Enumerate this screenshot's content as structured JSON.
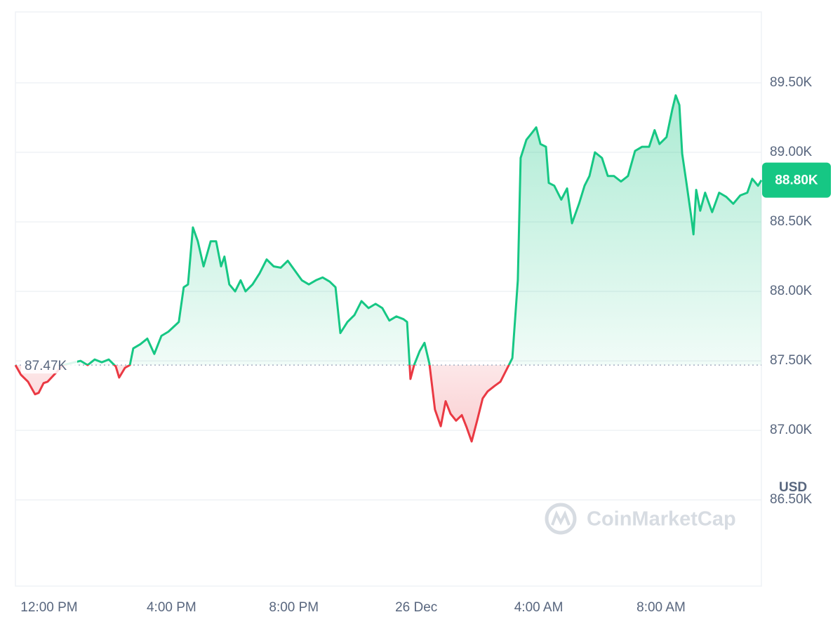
{
  "chart_data": {
    "type": "line",
    "unit": "USD",
    "watermark": "CoinMarketCap",
    "up_color": "#16c784",
    "down_color": "#ea3943",
    "grid": true,
    "xlim": [
      -1.1,
      23.28
    ],
    "xticks": [
      {
        "value": 0,
        "label": "12:00 PM"
      },
      {
        "value": 4,
        "label": "4:00 PM"
      },
      {
        "value": 8,
        "label": "8:00 PM"
      },
      {
        "value": 12,
        "label": "26 Dec"
      },
      {
        "value": 16,
        "label": "4:00 AM"
      },
      {
        "value": 20,
        "label": "8:00 AM"
      }
    ],
    "ylim": [
      85.88,
      90.01
    ],
    "yticks": [
      {
        "value": 86.5,
        "label": "86.50K"
      },
      {
        "value": 87,
        "label": "87.00K"
      },
      {
        "value": 87.5,
        "label": "87.50K"
      },
      {
        "value": 88,
        "label": "88.00K"
      },
      {
        "value": 88.5,
        "label": "88.50K"
      },
      {
        "value": 89,
        "label": "89.00K"
      },
      {
        "value": 89.5,
        "label": "89.50K"
      }
    ],
    "open": {
      "value": 87.47,
      "label": "87.47K"
    },
    "last_price": {
      "value": 88.8,
      "label": "88.80K"
    },
    "x": [
      -1.1,
      -0.92,
      -0.69,
      -0.46,
      -0.34,
      -0.18,
      -0.05,
      0.46,
      1.03,
      1.26,
      1.49,
      1.72,
      1.95,
      2.18,
      2.29,
      2.48,
      2.64,
      2.75,
      2.98,
      3.21,
      3.44,
      3.67,
      3.9,
      4.24,
      4.4,
      4.54,
      4.7,
      4.86,
      5.05,
      5.28,
      5.46,
      5.62,
      5.73,
      5.89,
      6.08,
      6.26,
      6.42,
      6.65,
      6.88,
      7.11,
      7.34,
      7.57,
      7.8,
      8.03,
      8.26,
      8.49,
      8.72,
      8.94,
      9.17,
      9.36,
      9.52,
      9.75,
      9.98,
      10.21,
      10.44,
      10.67,
      10.89,
      11.12,
      11.35,
      11.58,
      11.7,
      11.81,
      11.93,
      12.11,
      12.27,
      12.43,
      12.61,
      12.8,
      12.96,
      13.12,
      13.3,
      13.49,
      13.65,
      13.81,
      13.99,
      14.17,
      14.33,
      14.56,
      14.75,
      14.91,
      15.14,
      15.32,
      15.41,
      15.6,
      15.78,
      15.92,
      16.06,
      16.24,
      16.33,
      16.51,
      16.74,
      16.93,
      17.09,
      17.32,
      17.5,
      17.66,
      17.84,
      18.07,
      18.26,
      18.46,
      18.69,
      18.92,
      19.15,
      19.38,
      19.61,
      19.79,
      19.95,
      20.18,
      20.37,
      20.48,
      20.6,
      20.69,
      20.83,
      20.99,
      21.06,
      21.15,
      21.28,
      21.44,
      21.67,
      21.9,
      22.13,
      22.36,
      22.59,
      22.82,
      22.98,
      23.17,
      23.28
    ],
    "values": [
      87.47,
      87.4,
      87.35,
      87.26,
      87.27,
      87.34,
      87.35,
      87.47,
      87.5,
      87.47,
      87.51,
      87.49,
      87.51,
      87.46,
      87.38,
      87.45,
      87.47,
      87.59,
      87.62,
      87.66,
      87.55,
      87.68,
      87.71,
      87.78,
      88.03,
      88.05,
      88.46,
      88.36,
      88.18,
      88.36,
      88.36,
      88.18,
      88.25,
      88.05,
      88.0,
      88.08,
      88.0,
      88.05,
      88.13,
      88.23,
      88.18,
      88.17,
      88.22,
      88.15,
      88.08,
      88.05,
      88.08,
      88.1,
      88.07,
      88.03,
      87.7,
      87.78,
      87.83,
      87.93,
      87.88,
      87.91,
      87.88,
      87.79,
      87.82,
      87.8,
      87.78,
      87.37,
      87.47,
      87.57,
      87.63,
      87.48,
      87.15,
      87.03,
      87.21,
      87.12,
      87.07,
      87.11,
      87.02,
      86.92,
      87.07,
      87.23,
      87.28,
      87.32,
      87.35,
      87.42,
      87.52,
      88.08,
      88.96,
      89.09,
      89.14,
      89.18,
      89.06,
      89.04,
      88.78,
      88.76,
      88.66,
      88.74,
      88.49,
      88.63,
      88.76,
      88.83,
      89.0,
      88.96,
      88.83,
      88.83,
      88.79,
      88.83,
      89.01,
      89.04,
      89.04,
      89.16,
      89.06,
      89.11,
      89.31,
      89.41,
      89.34,
      88.99,
      88.78,
      88.53,
      88.41,
      88.73,
      88.58,
      88.71,
      88.57,
      88.71,
      88.68,
      88.63,
      88.69,
      88.71,
      88.81,
      88.76,
      88.8
    ]
  }
}
